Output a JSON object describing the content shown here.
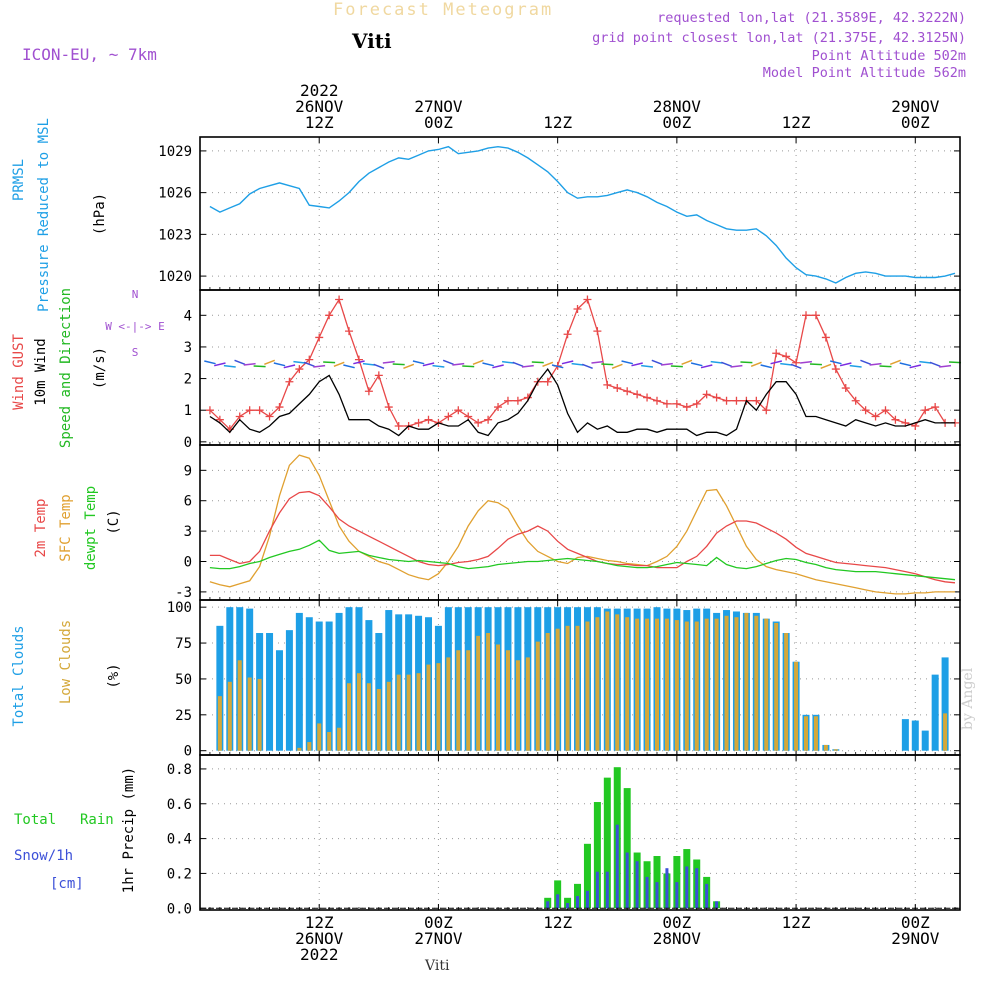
{
  "header": {
    "brand_title": "Forecast Meteogram",
    "location": "Viti",
    "model": "ICON-EU, ~ 7km",
    "requested": "requested lon,lat (21.3589E, 42.3222N)",
    "gridpoint": "grid point closest lon,lat (21.375E, 42.3125N)",
    "point_alt": "Point Altitude 502m",
    "model_alt": "Model Point Altitude 562m",
    "footer_location": "Viti",
    "credit": "by Angel"
  },
  "colors": {
    "pressure": "#1e9fe6",
    "gust": "#e84848",
    "wind": "#000000",
    "dir_label": "#22b822",
    "temp": "#e84848",
    "sfc": "#e0a030",
    "dew": "#22c822",
    "total_cloud": "#1e9fe6",
    "low_cloud": "#d4a83a",
    "rain": "#22c822",
    "snow": "#3c50d8",
    "meta": "#a050d0"
  },
  "axes": {
    "top_ticks": [
      {
        "t": 18,
        "lines": [
          "2022",
          "26NOV",
          "12Z"
        ]
      },
      {
        "t": 30,
        "lines": [
          "27NOV",
          "00Z"
        ]
      },
      {
        "t": 42,
        "lines": [
          "12Z"
        ]
      },
      {
        "t": 54,
        "lines": [
          "28NOV",
          "00Z"
        ]
      },
      {
        "t": 66,
        "lines": [
          "12Z"
        ]
      },
      {
        "t": 78,
        "lines": [
          "29NOV",
          "00Z"
        ]
      }
    ],
    "bottom_ticks": [
      {
        "t": 18,
        "lines": [
          "12Z",
          "26NOV",
          "2022"
        ]
      },
      {
        "t": 30,
        "lines": [
          "00Z",
          "27NOV"
        ]
      },
      {
        "t": 42,
        "lines": [
          "12Z"
        ]
      },
      {
        "t": 54,
        "lines": [
          "00Z",
          "28NOV"
        ]
      },
      {
        "t": 66,
        "lines": [
          "12Z"
        ]
      },
      {
        "t": 78,
        "lines": [
          "00Z",
          "29NOV"
        ]
      }
    ]
  },
  "panel_labels": {
    "pressure": {
      "l1": "PRMSL",
      "l2": "Pressure Reduced to MSL",
      "unit": "(hPa)"
    },
    "wind": {
      "l1": "Wind GUST",
      "l2": "10m Wind",
      "l3": "Speed and Direction",
      "unit": "(m/s)",
      "compass_n": "N",
      "compass_ew": "W <-|-> E",
      "compass_s": "S"
    },
    "temp": {
      "l1": "2m Temp",
      "l2": "SFC Temp",
      "l3": "dewpt Temp",
      "unit": "(C)"
    },
    "cloud": {
      "l1": "Total Clouds",
      "l2": "Low Clouds",
      "unit": "(%)"
    },
    "precip": {
      "l1": "Total",
      "l1b": "Rain",
      "l2": "Snow/1h",
      "l3": "[cm]",
      "unit": "1hr Precip (mm)"
    }
  },
  "chart_data": [
    {
      "type": "line",
      "name": "pressure",
      "ylabel": "(hPa)",
      "ylim": [
        1019,
        1030
      ],
      "yticks": [
        1020,
        1023,
        1026,
        1029
      ],
      "x": [
        7,
        8,
        9,
        10,
        11,
        12,
        13,
        14,
        15,
        16,
        17,
        18,
        19,
        20,
        21,
        22,
        23,
        24,
        25,
        26,
        27,
        28,
        29,
        30,
        31,
        32,
        33,
        34,
        35,
        36,
        37,
        38,
        39,
        40,
        41,
        42,
        43,
        44,
        45,
        46,
        47,
        48,
        49,
        50,
        51,
        52,
        53,
        54,
        55,
        56,
        57,
        58,
        59,
        60,
        61,
        62,
        63,
        64,
        65,
        66,
        67,
        68,
        69,
        70,
        71,
        72,
        73,
        74,
        75,
        76,
        77,
        78,
        79,
        80,
        81,
        82
      ],
      "values": [
        1025.0,
        1024.6,
        1024.9,
        1025.2,
        1025.9,
        1026.3,
        1026.5,
        1026.7,
        1026.5,
        1026.3,
        1025.1,
        1025.0,
        1024.9,
        1025.4,
        1026.0,
        1026.8,
        1027.4,
        1027.8,
        1028.2,
        1028.5,
        1028.4,
        1028.7,
        1029.0,
        1029.1,
        1029.3,
        1028.8,
        1028.9,
        1029.0,
        1029.2,
        1029.3,
        1029.2,
        1028.9,
        1028.5,
        1028.0,
        1027.5,
        1026.8,
        1026.0,
        1025.6,
        1025.7,
        1025.7,
        1025.8,
        1026.0,
        1026.2,
        1026.0,
        1025.7,
        1025.3,
        1025.0,
        1024.6,
        1024.3,
        1024.4,
        1024.0,
        1023.7,
        1023.4,
        1023.3,
        1023.3,
        1023.4,
        1022.9,
        1022.2,
        1021.3,
        1020.6,
        1020.1,
        1020.0,
        1019.8,
        1019.5,
        1019.9,
        1020.2,
        1020.3,
        1020.2,
        1020.0,
        1020.0,
        1020.0,
        1019.9,
        1019.9,
        1019.9,
        1020.0,
        1020.2
      ]
    },
    {
      "type": "line",
      "name": "wind",
      "ylabel": "(m/s)",
      "ylim": [
        -0.1,
        4.8
      ],
      "yticks": [
        0,
        1,
        2,
        3,
        4
      ],
      "x": [
        7,
        8,
        9,
        10,
        11,
        12,
        13,
        14,
        15,
        16,
        17,
        18,
        19,
        20,
        21,
        22,
        23,
        24,
        25,
        26,
        27,
        28,
        29,
        30,
        31,
        32,
        33,
        34,
        35,
        36,
        37,
        38,
        39,
        40,
        41,
        42,
        43,
        44,
        45,
        46,
        47,
        48,
        49,
        50,
        51,
        52,
        53,
        54,
        55,
        56,
        57,
        58,
        59,
        60,
        61,
        62,
        63,
        64,
        65,
        66,
        67,
        68,
        69,
        70,
        71,
        72,
        73,
        74,
        75,
        76,
        77,
        78,
        79,
        80,
        81,
        82
      ],
      "gust": [
        1.0,
        0.7,
        0.4,
        0.8,
        1.0,
        1.0,
        0.8,
        1.1,
        1.9,
        2.3,
        2.6,
        3.3,
        4.0,
        4.5,
        3.5,
        2.6,
        1.6,
        2.1,
        1.1,
        0.5,
        0.5,
        0.6,
        0.7,
        0.6,
        0.8,
        1.0,
        0.8,
        0.6,
        0.7,
        1.1,
        1.3,
        1.3,
        1.4,
        1.9,
        1.9,
        2.4,
        3.4,
        4.2,
        4.5,
        3.5,
        1.8,
        1.7,
        1.6,
        1.5,
        1.4,
        1.3,
        1.2,
        1.2,
        1.1,
        1.2,
        1.5,
        1.4,
        1.3,
        1.3,
        1.3,
        1.3,
        1.0,
        2.8,
        2.7,
        2.5,
        4.0,
        4.0,
        3.3,
        2.3,
        1.7,
        1.3,
        1.0,
        0.8,
        1.0,
        0.7,
        0.6,
        0.5,
        1.0,
        1.1,
        0.6,
        0.6
      ],
      "mean": [
        0.8,
        0.6,
        0.3,
        0.7,
        0.4,
        0.3,
        0.5,
        0.8,
        0.9,
        1.2,
        1.5,
        1.9,
        2.1,
        1.5,
        0.7,
        0.7,
        0.7,
        0.5,
        0.4,
        0.2,
        0.5,
        0.4,
        0.4,
        0.6,
        0.5,
        0.5,
        0.7,
        0.3,
        0.2,
        0.6,
        0.7,
        0.9,
        1.3,
        1.9,
        2.3,
        1.8,
        0.9,
        0.3,
        0.6,
        0.4,
        0.5,
        0.3,
        0.3,
        0.4,
        0.4,
        0.3,
        0.4,
        0.4,
        0.4,
        0.2,
        0.3,
        0.3,
        0.2,
        0.4,
        1.3,
        1.0,
        1.5,
        1.9,
        1.9,
        1.5,
        0.8,
        0.8,
        0.7,
        0.6,
        0.5,
        0.7,
        0.6,
        0.5,
        0.6,
        0.5,
        0.5,
        0.6,
        0.7,
        0.6,
        0.6,
        0.6
      ]
    },
    {
      "type": "line",
      "name": "temperature",
      "ylabel": "(C)",
      "ylim": [
        -3.8,
        11.5
      ],
      "yticks": [
        -3,
        0,
        3,
        6,
        9
      ],
      "x": [
        7,
        8,
        9,
        10,
        11,
        12,
        13,
        14,
        15,
        16,
        17,
        18,
        19,
        20,
        21,
        22,
        23,
        24,
        25,
        26,
        27,
        28,
        29,
        30,
        31,
        32,
        33,
        34,
        35,
        36,
        37,
        38,
        39,
        40,
        41,
        42,
        43,
        44,
        45,
        46,
        47,
        48,
        49,
        50,
        51,
        52,
        53,
        54,
        55,
        56,
        57,
        58,
        59,
        60,
        61,
        62,
        63,
        64,
        65,
        66,
        67,
        68,
        69,
        70,
        71,
        72,
        73,
        74,
        75,
        76,
        77,
        78,
        79,
        80,
        81,
        82
      ],
      "t2m": [
        0.6,
        0.6,
        0.2,
        -0.2,
        0.0,
        1.0,
        3.0,
        4.8,
        6.2,
        6.8,
        6.9,
        6.5,
        5.4,
        4.2,
        3.5,
        3.0,
        2.5,
        2.0,
        1.5,
        1.0,
        0.5,
        0.0,
        -0.3,
        -0.4,
        -0.3,
        -0.1,
        0.0,
        0.2,
        0.5,
        1.3,
        2.2,
        2.7,
        3.0,
        3.5,
        3.0,
        2.0,
        1.2,
        0.8,
        0.4,
        0.0,
        -0.2,
        -0.3,
        -0.3,
        -0.4,
        -0.4,
        -0.6,
        -0.6,
        -0.6,
        0.0,
        0.5,
        1.5,
        2.8,
        3.5,
        4.0,
        4.0,
        3.8,
        3.3,
        2.8,
        2.2,
        1.4,
        0.8,
        0.5,
        0.2,
        -0.1,
        -0.2,
        -0.3,
        -0.4,
        -0.5,
        -0.6,
        -0.8,
        -1.0,
        -1.2,
        -1.5,
        -1.8,
        -2.0,
        -2.1
      ],
      "sfc": [
        -2.0,
        -2.3,
        -2.5,
        -2.2,
        -1.9,
        -0.5,
        2.5,
        6.5,
        9.5,
        10.5,
        10.2,
        8.5,
        6.0,
        3.5,
        2.0,
        1.0,
        0.5,
        0.0,
        -0.3,
        -0.8,
        -1.3,
        -1.6,
        -1.8,
        -1.2,
        0.0,
        1.5,
        3.5,
        5.0,
        6.0,
        5.8,
        5.2,
        3.5,
        2.0,
        1.0,
        0.5,
        0.0,
        -0.2,
        0.4,
        0.5,
        0.3,
        0.1,
        0.0,
        -0.2,
        -0.3,
        -0.4,
        0.0,
        0.5,
        1.5,
        3.0,
        5.0,
        7.0,
        7.1,
        5.5,
        3.5,
        1.5,
        0.2,
        -0.5,
        -0.8,
        -1.0,
        -1.2,
        -1.5,
        -1.8,
        -2.0,
        -2.2,
        -2.4,
        -2.6,
        -2.8,
        -3.0,
        -3.1,
        -3.2,
        -3.2,
        -3.1,
        -3.1,
        -3.0,
        -3.0,
        -3.0
      ],
      "dew": [
        -0.6,
        -0.7,
        -0.7,
        -0.5,
        -0.2,
        0.0,
        0.4,
        0.7,
        1.0,
        1.2,
        1.6,
        2.1,
        1.1,
        0.8,
        0.9,
        1.0,
        0.6,
        0.4,
        0.2,
        0.1,
        0.0,
        0.1,
        0.0,
        -0.1,
        -0.2,
        -0.5,
        -0.7,
        -0.6,
        -0.5,
        -0.3,
        -0.2,
        -0.1,
        0.0,
        0.0,
        0.1,
        0.2,
        0.3,
        0.2,
        0.1,
        0.0,
        -0.2,
        -0.4,
        -0.5,
        -0.6,
        -0.6,
        -0.5,
        -0.3,
        -0.1,
        -0.2,
        -0.3,
        -0.4,
        0.4,
        -0.3,
        -0.6,
        -0.7,
        -0.5,
        -0.2,
        0.1,
        0.3,
        0.2,
        -0.1,
        -0.3,
        -0.6,
        -0.8,
        -0.9,
        -1.0,
        -1.0,
        -1.0,
        -1.1,
        -1.2,
        -1.3,
        -1.4,
        -1.5,
        -1.6,
        -1.7,
        -1.8
      ]
    },
    {
      "type": "bar",
      "name": "clouds",
      "ylabel": "(%)",
      "ylim": [
        -3,
        105
      ],
      "yticks": [
        0,
        25,
        50,
        75,
        100
      ],
      "x": [
        8,
        9,
        10,
        11,
        12,
        13,
        14,
        15,
        16,
        17,
        18,
        19,
        20,
        21,
        22,
        23,
        24,
        25,
        26,
        27,
        28,
        29,
        30,
        31,
        32,
        33,
        34,
        35,
        36,
        37,
        38,
        39,
        40,
        41,
        42,
        43,
        44,
        45,
        46,
        47,
        48,
        49,
        50,
        51,
        52,
        53,
        54,
        55,
        56,
        57,
        58,
        59,
        60,
        61,
        62,
        63,
        64,
        65,
        66,
        67,
        68,
        69,
        70,
        71,
        72,
        73,
        74,
        75,
        76,
        77,
        78,
        79,
        80,
        81,
        82
      ],
      "total": [
        87,
        100,
        100,
        99,
        82,
        82,
        70,
        84,
        96,
        93,
        90,
        90,
        96,
        100,
        100,
        91,
        82,
        98,
        95,
        95,
        94,
        93,
        87,
        100,
        100,
        100,
        100,
        100,
        100,
        100,
        100,
        100,
        100,
        100,
        100,
        100,
        100,
        100,
        100,
        99,
        99,
        99,
        99,
        99,
        100,
        99,
        99,
        98,
        99,
        99,
        96,
        98,
        97,
        96,
        96,
        92,
        90,
        82,
        62,
        25,
        25,
        4,
        1,
        0,
        0,
        0,
        0,
        0,
        0,
        22,
        21,
        14,
        53,
        65,
        0
      ],
      "low": [
        38,
        48,
        63,
        51,
        50,
        0,
        0,
        0,
        2,
        6,
        19,
        13,
        16,
        47,
        54,
        47,
        43,
        48,
        53,
        53,
        54,
        60,
        61,
        65,
        70,
        70,
        80,
        82,
        74,
        70,
        63,
        65,
        76,
        82,
        85,
        87,
        87,
        90,
        93,
        97,
        95,
        93,
        92,
        92,
        92,
        92,
        91,
        90,
        90,
        92,
        92,
        94,
        93,
        96,
        94,
        92,
        89,
        82,
        62,
        24,
        24,
        4,
        1,
        0,
        0,
        0,
        0,
        0,
        0,
        0,
        0,
        0,
        0,
        26,
        0
      ]
    },
    {
      "type": "bar",
      "name": "precip",
      "ylabel": "1hr Precip (mm)",
      "ylim": [
        -0.01,
        0.88
      ],
      "yticks": [
        0,
        0.2,
        0.4,
        0.6,
        0.8
      ],
      "x": [
        41,
        42,
        43,
        44,
        45,
        46,
        47,
        48,
        49,
        50,
        51,
        52,
        53,
        54,
        55,
        56,
        57,
        58
      ],
      "rain": [
        0.06,
        0.16,
        0.06,
        0.14,
        0.37,
        0.61,
        0.75,
        0.81,
        0.69,
        0.32,
        0.27,
        0.3,
        0.2,
        0.3,
        0.34,
        0.28,
        0.18,
        0.04
      ],
      "snow": [
        0.04,
        0.08,
        0.03,
        0.07,
        0.1,
        0.21,
        0.21,
        0.48,
        0.32,
        0.27,
        0.18,
        0.15,
        0.23,
        0.15,
        0.24,
        0.23,
        0.14,
        0.04
      ]
    }
  ]
}
